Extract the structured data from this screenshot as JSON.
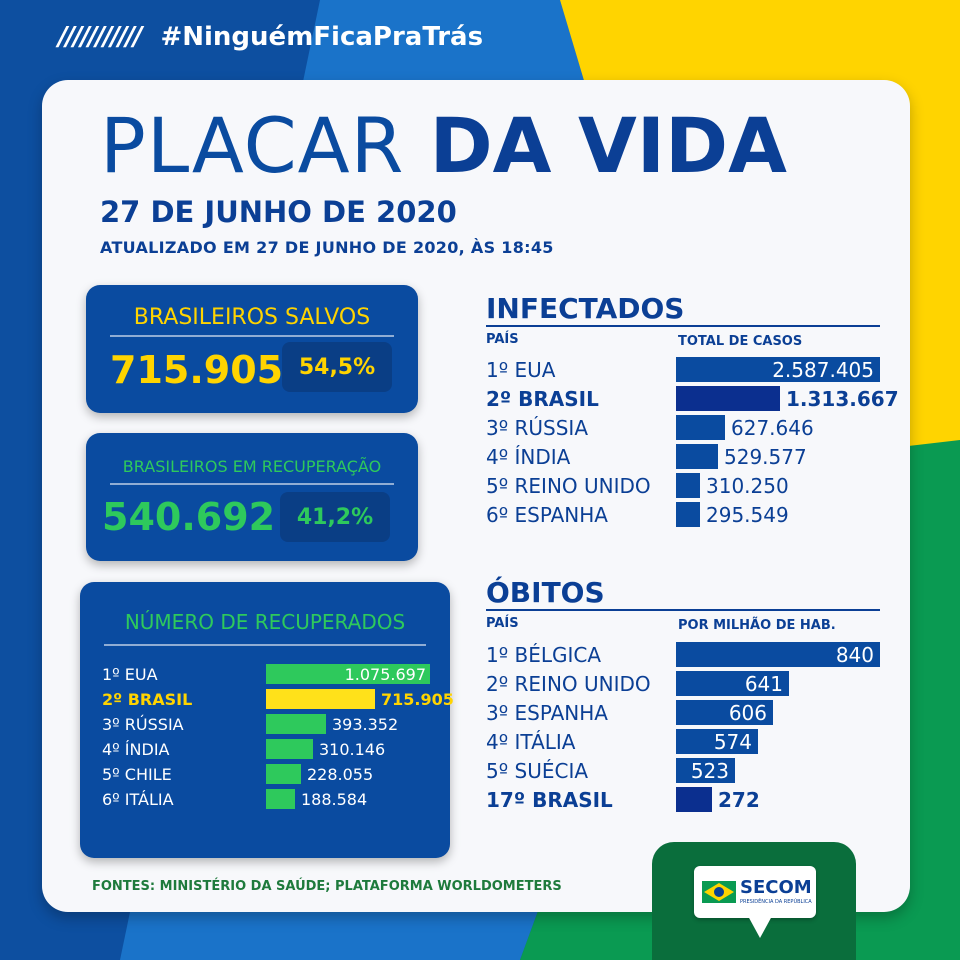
{
  "header": {
    "slashes": "///////////",
    "hashtag": "#NinguémFicaPraTrás"
  },
  "title": {
    "part1": "PLACAR ",
    "part2": "DA VIDA",
    "date": "27 DE JUNHO DE 2020",
    "updated": "ATUALIZADO EM 27 DE JUNHO DE 2020, ÀS 18:45"
  },
  "saved": {
    "label": "BRASILEIROS SALVOS",
    "value": "715.905",
    "percent": "54,5%"
  },
  "recovering": {
    "label": "BRASILEIROS EM RECUPERAÇÃO",
    "value": "540.692",
    "percent": "41,2%"
  },
  "recovered": {
    "label": "NÚMERO DE RECUPERADOS",
    "rows": [
      {
        "country": "1º EUA",
        "value": "1.075.697",
        "num": 1075697,
        "highlight": false
      },
      {
        "country": "2º BRASIL",
        "value": "715.905",
        "num": 715905,
        "highlight": true
      },
      {
        "country": "3º RÚSSIA",
        "value": "393.352",
        "num": 393352,
        "highlight": false
      },
      {
        "country": "4º ÍNDIA",
        "value": "310.146",
        "num": 310146,
        "highlight": false
      },
      {
        "country": "5º CHILE",
        "value": "228.055",
        "num": 228055,
        "highlight": false
      },
      {
        "country": "6º ITÁLIA",
        "value": "188.584",
        "num": 188584,
        "highlight": false
      }
    ]
  },
  "infected": {
    "title": "INFECTADOS",
    "col_country": "PAÍS",
    "col_value": "TOTAL DE CASOS",
    "rows": [
      {
        "country": "1º EUA",
        "value": "2.587.405",
        "num": 2587405,
        "highlight": false
      },
      {
        "country": "2º BRASIL",
        "value": "1.313.667",
        "num": 1313667,
        "highlight": true
      },
      {
        "country": "3º RÚSSIA",
        "value": "627.646",
        "num": 627646,
        "highlight": false
      },
      {
        "country": "4º ÍNDIA",
        "value": "529.577",
        "num": 529577,
        "highlight": false
      },
      {
        "country": "5º REINO UNIDO",
        "value": "310.250",
        "num": 310250,
        "highlight": false
      },
      {
        "country": "6º ESPANHA",
        "value": "295.549",
        "num": 295549,
        "highlight": false
      }
    ]
  },
  "deaths": {
    "title": "ÓBITOS",
    "col_country": "PAÍS",
    "col_value": "POR MILHÃO DE HAB.",
    "rows": [
      {
        "country": "1º BÉLGICA",
        "value": "840",
        "num": 840,
        "highlight": false
      },
      {
        "country": "2º REINO UNIDO",
        "value": "641",
        "num": 641,
        "highlight": false
      },
      {
        "country": "3º ESPANHA",
        "value": "606",
        "num": 606,
        "highlight": false
      },
      {
        "country": "4º ITÁLIA",
        "value": "574",
        "num": 574,
        "highlight": false
      },
      {
        "country": "5º SUÉCIA",
        "value": "523",
        "num": 523,
        "highlight": false
      },
      {
        "country": "17º BRASIL",
        "value": "272",
        "num": 272,
        "highlight": true
      }
    ]
  },
  "sources": "FONTES: MINISTÉRIO DA SAÚDE; PLATAFORMA WORLDOMETERS",
  "logo": {
    "name": "SECOM",
    "subtitle": "PRESIDÊNCIA DA REPÚBLICA"
  },
  "colors": {
    "navy": "#0b3f95",
    "blue": "#0a4ba0",
    "yellow": "#ffd400",
    "green": "#2ec95c"
  }
}
